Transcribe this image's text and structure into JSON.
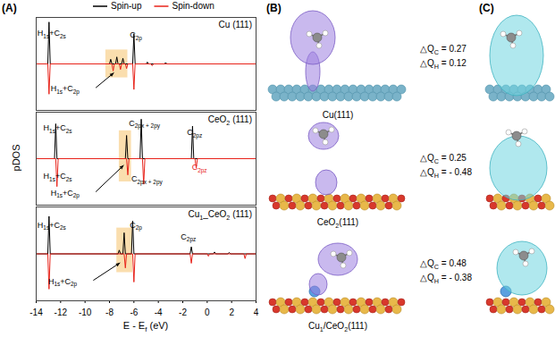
{
  "panels": [
    "(A)",
    "(B)",
    "(C)"
  ],
  "chart_data": [
    {
      "type": "line",
      "title": "Cu (111)",
      "xlim": [
        -14,
        4
      ],
      "ylim": [
        -1,
        1
      ],
      "tick_labels": false,
      "legend": "top",
      "highlight": {
        "x": [
          -8.3,
          -6.5
        ],
        "y": [
          -0.3,
          0.3
        ]
      },
      "series": [
        {
          "name": "Spin-up",
          "color": "#000000",
          "x": [
            -14,
            -13.05,
            -12.95,
            -12.85,
            -8.0,
            -7.9,
            -7.8,
            -7.5,
            -7.4,
            -7.3,
            -7.0,
            -6.9,
            -6.8,
            -6.1,
            -6.0,
            -5.9,
            -5.0,
            -4.9,
            -4.8,
            -3.5,
            -3.4,
            -3.3,
            4
          ],
          "values": [
            0,
            0,
            0.9,
            0,
            0,
            0.1,
            0,
            0,
            0.15,
            0,
            0,
            0.12,
            0,
            0,
            0.65,
            0,
            0,
            0.04,
            0,
            0,
            0.03,
            0,
            0
          ]
        },
        {
          "name": "Spin-down",
          "color": "#e8231a",
          "x": [
            -14,
            -13.05,
            -12.95,
            -12.85,
            -7.8,
            -7.7,
            -7.6,
            -7.2,
            -7.1,
            -7.0,
            -6.7,
            -6.6,
            -6.5,
            -6.1,
            -6.0,
            -5.9,
            -4.6,
            -4.5,
            -4.4,
            4
          ],
          "values": [
            0,
            0,
            -0.65,
            0,
            0,
            -0.15,
            0,
            0,
            -0.12,
            0,
            0,
            -0.1,
            0,
            0,
            -0.55,
            0,
            0,
            -0.04,
            0,
            0
          ]
        }
      ],
      "annotations": [
        {
          "text": "H1s+C2s",
          "x": -12.7,
          "y": 0.6
        },
        {
          "text": "C2p",
          "x": -5.8,
          "y": 0.55
        },
        {
          "text": "H1s+C2p",
          "x": -11.6,
          "y": -0.6,
          "arrow_to": [
            -7.6,
            -0.2
          ]
        }
      ]
    },
    {
      "type": "line",
      "title": "CeO2 (111)",
      "xlim": [
        -14,
        4
      ],
      "ylim": [
        -1,
        1
      ],
      "tick_labels": false,
      "ylabel": "pDOS",
      "highlight": {
        "x": [
          -7.2,
          -6.2
        ],
        "y": [
          -0.5,
          0.6
        ]
      },
      "series": [
        {
          "name": "Spin-up",
          "color": "#000000",
          "x": [
            -14,
            -12.5,
            -12.4,
            -12.3,
            -6.7,
            -6.6,
            -6.5,
            -5.5,
            -5.4,
            -5.3,
            -1.3,
            -1.2,
            -1.1,
            4
          ],
          "values": [
            0,
            0,
            0.75,
            0,
            0,
            0.5,
            0,
            0,
            0.85,
            0,
            0,
            0.7,
            0,
            0
          ]
        },
        {
          "name": "Spin-down",
          "color": "#e8231a",
          "x": [
            -14,
            -12.4,
            -12.3,
            -12.2,
            -6.6,
            -6.5,
            -6.4,
            -5.3,
            -5.2,
            -5.1,
            -1.0,
            -0.9,
            -0.8,
            4
          ],
          "values": [
            0,
            0,
            -0.6,
            0,
            0,
            -0.35,
            0,
            0,
            -0.55,
            0,
            0,
            -0.2,
            0,
            0
          ]
        }
      ],
      "annotations": [
        {
          "text": "H1s+C2s",
          "x": -12.2,
          "y": 0.6
        },
        {
          "text": "H1s+C2s",
          "x": -12.2,
          "y": -0.45
        },
        {
          "text": "H1s+C2p",
          "x": -11.6,
          "y": -0.8,
          "arrow_to": [
            -6.8,
            -0.15
          ]
        },
        {
          "text": "C2px + 2py",
          "x": -5.1,
          "y": 0.7
        },
        {
          "text": "C2px + 2py",
          "x": -4.9,
          "y": -0.5
        },
        {
          "text": "C2pz",
          "x": -1.0,
          "y": 0.5
        },
        {
          "text": "C2pz",
          "x": -0.6,
          "y": -0.25,
          "color": "#e8231a"
        }
      ]
    },
    {
      "type": "line",
      "title": "Cu1_CeO2 (111)",
      "xlim": [
        -14,
        4
      ],
      "ylim": [
        -1,
        1
      ],
      "tick_labels": "x",
      "xticks": [
        -14,
        -12,
        -10,
        -8,
        -6,
        -4,
        -2,
        0,
        2,
        4
      ],
      "xlabel": "E - Ef (eV)",
      "highlight": {
        "x": [
          -7.4,
          -6.1
        ],
        "y": [
          -0.4,
          0.55
        ]
      },
      "series": [
        {
          "name": "Spin-up",
          "color": "#000000",
          "x": [
            -14,
            -13.05,
            -12.95,
            -12.85,
            -7.3,
            -7.2,
            -7.1,
            -6.9,
            -6.8,
            -6.7,
            -6.2,
            -6.1,
            -6.0,
            -1.4,
            -1.3,
            -1.2,
            0.5,
            0.6,
            0.7,
            1.7,
            1.8,
            1.9,
            4
          ],
          "values": [
            0,
            0,
            0.8,
            0,
            0,
            0.08,
            0,
            0,
            0.45,
            0,
            0,
            0.7,
            0,
            0,
            0.15,
            0,
            0,
            0.04,
            0,
            0,
            0.03,
            0,
            0
          ]
        },
        {
          "name": "Spin-down",
          "color": "#e8231a",
          "x": [
            -14,
            -13.05,
            -12.95,
            -12.85,
            -6.8,
            -6.7,
            -6.6,
            -6.1,
            -6.0,
            -5.9,
            -1.4,
            -1.3,
            -1.2,
            0.0,
            0.1,
            0.2,
            3.0,
            3.1,
            3.2,
            4
          ],
          "values": [
            0,
            0,
            -0.75,
            0,
            0,
            -0.3,
            0,
            0,
            -0.6,
            0,
            0,
            -0.2,
            0,
            0,
            -0.05,
            0,
            0,
            -0.1,
            0,
            0
          ]
        }
      ],
      "annotations": [
        {
          "text": "H1s+C2s",
          "x": -12.7,
          "y": 0.55
        },
        {
          "text": "C2p",
          "x": -5.8,
          "y": 0.55
        },
        {
          "text": "C2pz",
          "x": -1.5,
          "y": 0.3
        },
        {
          "text": "H1s+C2p",
          "x": -11.8,
          "y": -0.65,
          "arrow_to": [
            -7.1,
            -0.2
          ]
        }
      ]
    }
  ],
  "structures": [
    {
      "label": "Cu(111)",
      "charges": [
        "△QC = 0.27",
        "△QH = 0.12"
      ]
    },
    {
      "label": "CeO2(111)",
      "charges": [
        "△QC = 0.25",
        "△QH = - 0.48"
      ]
    },
    {
      "label": "Cu1/CeO2(111)",
      "charges": [
        "△QC = 0.48",
        "△QH = - 0.38"
      ]
    }
  ]
}
